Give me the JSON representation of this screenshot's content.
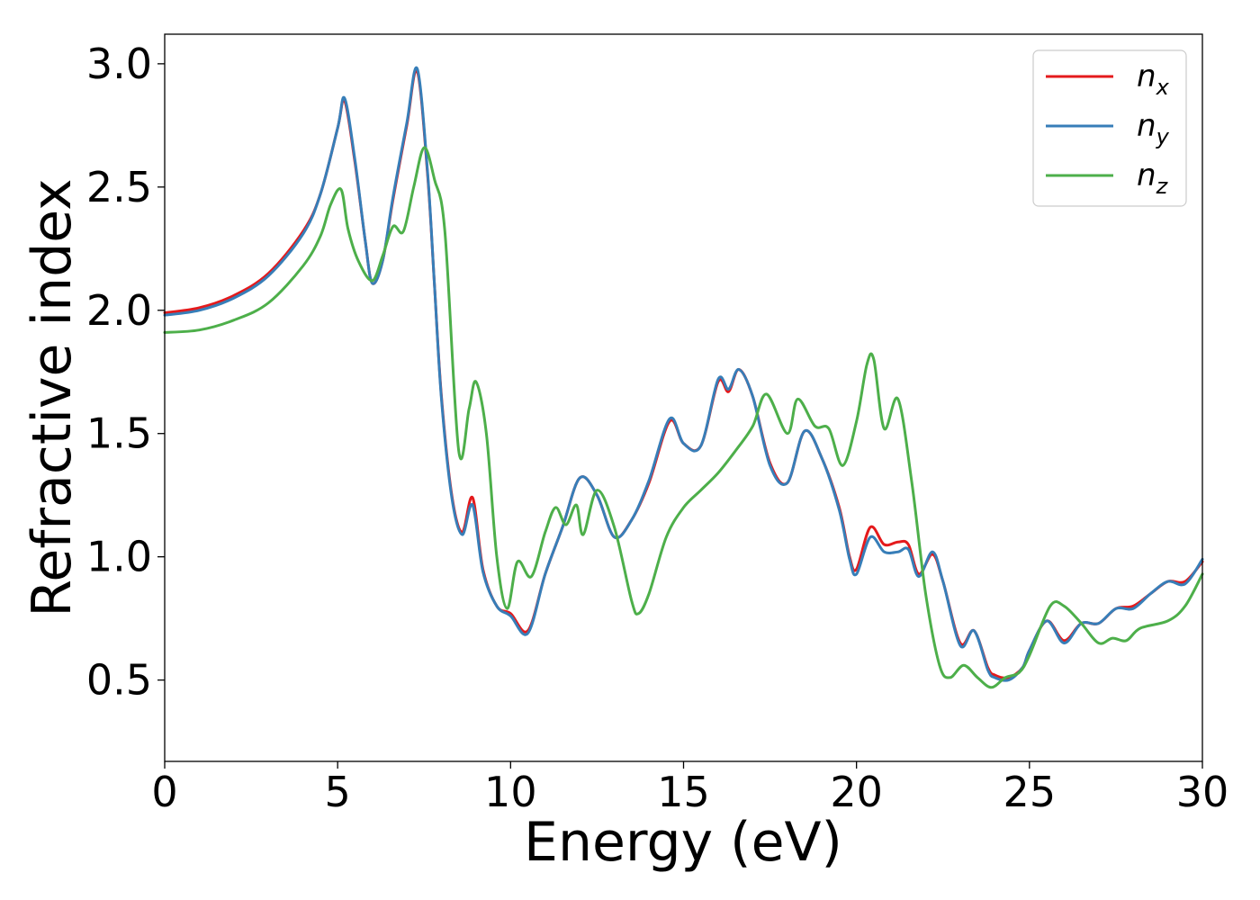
{
  "chart_data": {
    "type": "line",
    "title": "",
    "xlabel": "Energy (eV)",
    "ylabel": "Refractive index",
    "xlim": [
      0,
      30
    ],
    "ylim": [
      0.17,
      3.12
    ],
    "xticks": [
      0,
      5,
      10,
      15,
      20,
      25,
      30
    ],
    "yticks": [
      0.5,
      1.0,
      1.5,
      2.0,
      2.5,
      3.0
    ],
    "xtick_labels": [
      "0",
      "5",
      "10",
      "15",
      "20",
      "25",
      "30"
    ],
    "ytick_labels": [
      "0.5",
      "1.0",
      "1.5",
      "2.0",
      "2.5",
      "3.0"
    ],
    "grid": false,
    "legend_position": "top-right",
    "series": [
      {
        "name": "n_x",
        "label_base": "n",
        "label_sub": "x",
        "color": "#e41a1c",
        "x": [
          0,
          1,
          2,
          3,
          4,
          4.5,
          5,
          5.2,
          5.5,
          5.8,
          6,
          6.3,
          6.6,
          7,
          7.3,
          7.6,
          7.8,
          8,
          8.3,
          8.6,
          8.9,
          9.2,
          9.6,
          10,
          10.5,
          11,
          11.5,
          12,
          12.5,
          13,
          13.5,
          14,
          14.6,
          15,
          15.5,
          16,
          16.3,
          16.6,
          17,
          17.5,
          18,
          18.5,
          19,
          19.5,
          19.8,
          20,
          20.4,
          20.8,
          21.2,
          21.5,
          21.8,
          22.2,
          22.5,
          23,
          23.4,
          23.8,
          24,
          24.4,
          24.8,
          25,
          25.5,
          26,
          26.5,
          27,
          27.5,
          28,
          28.5,
          29,
          29.5,
          30
        ],
        "y": [
          1.99,
          2.01,
          2.06,
          2.15,
          2.32,
          2.47,
          2.74,
          2.85,
          2.6,
          2.28,
          2.11,
          2.2,
          2.45,
          2.75,
          2.97,
          2.55,
          2.1,
          1.65,
          1.25,
          1.1,
          1.24,
          0.95,
          0.8,
          0.77,
          0.7,
          0.93,
          1.12,
          1.32,
          1.25,
          1.08,
          1.15,
          1.3,
          1.55,
          1.46,
          1.45,
          1.71,
          1.67,
          1.76,
          1.65,
          1.38,
          1.3,
          1.51,
          1.4,
          1.2,
          1.0,
          0.95,
          1.12,
          1.05,
          1.06,
          1.05,
          0.93,
          1.01,
          0.9,
          0.65,
          0.7,
          0.55,
          0.52,
          0.51,
          0.55,
          0.62,
          0.74,
          0.66,
          0.73,
          0.73,
          0.79,
          0.8,
          0.85,
          0.9,
          0.9,
          0.98
        ]
      },
      {
        "name": "n_y",
        "label_base": "n",
        "label_sub": "y",
        "color": "#377eb8",
        "x": [
          0,
          1,
          2,
          3,
          4,
          4.5,
          5,
          5.2,
          5.5,
          5.8,
          6,
          6.3,
          6.6,
          7,
          7.3,
          7.6,
          7.8,
          8,
          8.3,
          8.6,
          8.9,
          9.2,
          9.6,
          10,
          10.5,
          11,
          11.5,
          12,
          12.5,
          13,
          13.5,
          14,
          14.6,
          15,
          15.5,
          16,
          16.3,
          16.6,
          17,
          17.5,
          18,
          18.5,
          19,
          19.5,
          19.8,
          20,
          20.4,
          20.8,
          21.2,
          21.5,
          21.8,
          22.2,
          22.5,
          23,
          23.4,
          23.8,
          24,
          24.4,
          24.8,
          25,
          25.5,
          26,
          26.5,
          27,
          27.5,
          28,
          28.5,
          29,
          29.5,
          30
        ],
        "y": [
          1.98,
          2.0,
          2.05,
          2.14,
          2.31,
          2.47,
          2.74,
          2.86,
          2.61,
          2.28,
          2.11,
          2.2,
          2.46,
          2.76,
          2.98,
          2.56,
          2.1,
          1.64,
          1.24,
          1.09,
          1.21,
          0.94,
          0.8,
          0.76,
          0.69,
          0.93,
          1.12,
          1.32,
          1.25,
          1.08,
          1.15,
          1.31,
          1.56,
          1.46,
          1.45,
          1.72,
          1.68,
          1.76,
          1.65,
          1.37,
          1.3,
          1.51,
          1.4,
          1.19,
          0.99,
          0.93,
          1.08,
          1.02,
          1.02,
          1.03,
          0.92,
          1.02,
          0.9,
          0.64,
          0.7,
          0.54,
          0.51,
          0.5,
          0.55,
          0.62,
          0.74,
          0.65,
          0.73,
          0.73,
          0.79,
          0.79,
          0.85,
          0.9,
          0.89,
          0.99
        ]
      },
      {
        "name": "n_z",
        "label_base": "n",
        "label_sub": "z",
        "color": "#4daf4a",
        "x": [
          0,
          1,
          2,
          3,
          4,
          4.5,
          4.8,
          5.1,
          5.3,
          5.6,
          6,
          6.3,
          6.6,
          6.9,
          7.2,
          7.5,
          7.8,
          8.1,
          8.5,
          8.8,
          9.0,
          9.3,
          9.6,
          9.9,
          10.2,
          10.6,
          11,
          11.3,
          11.6,
          11.9,
          12.1,
          12.5,
          13,
          13.5,
          13.7,
          14,
          14.5,
          15,
          15.5,
          16,
          16.5,
          17,
          17.4,
          18,
          18.3,
          18.8,
          19.2,
          19.6,
          20,
          20.3,
          20.5,
          20.8,
          21.2,
          21.6,
          22,
          22.4,
          22.7,
          23.1,
          23.5,
          23.9,
          24.3,
          24.7,
          25,
          25.6,
          26,
          26.5,
          27,
          27.4,
          27.8,
          28.2,
          29,
          29.5,
          30
        ],
        "y": [
          1.91,
          1.92,
          1.96,
          2.03,
          2.18,
          2.3,
          2.43,
          2.49,
          2.33,
          2.2,
          2.12,
          2.22,
          2.34,
          2.32,
          2.5,
          2.66,
          2.53,
          2.32,
          1.43,
          1.6,
          1.71,
          1.5,
          1.0,
          0.79,
          0.98,
          0.92,
          1.1,
          1.2,
          1.13,
          1.21,
          1.09,
          1.27,
          1.12,
          0.82,
          0.77,
          0.85,
          1.08,
          1.2,
          1.27,
          1.34,
          1.43,
          1.53,
          1.66,
          1.5,
          1.64,
          1.53,
          1.52,
          1.37,
          1.55,
          1.78,
          1.8,
          1.52,
          1.64,
          1.3,
          0.85,
          0.56,
          0.51,
          0.56,
          0.51,
          0.47,
          0.51,
          0.53,
          0.6,
          0.8,
          0.8,
          0.73,
          0.65,
          0.67,
          0.66,
          0.71,
          0.74,
          0.8,
          0.93
        ]
      }
    ]
  }
}
